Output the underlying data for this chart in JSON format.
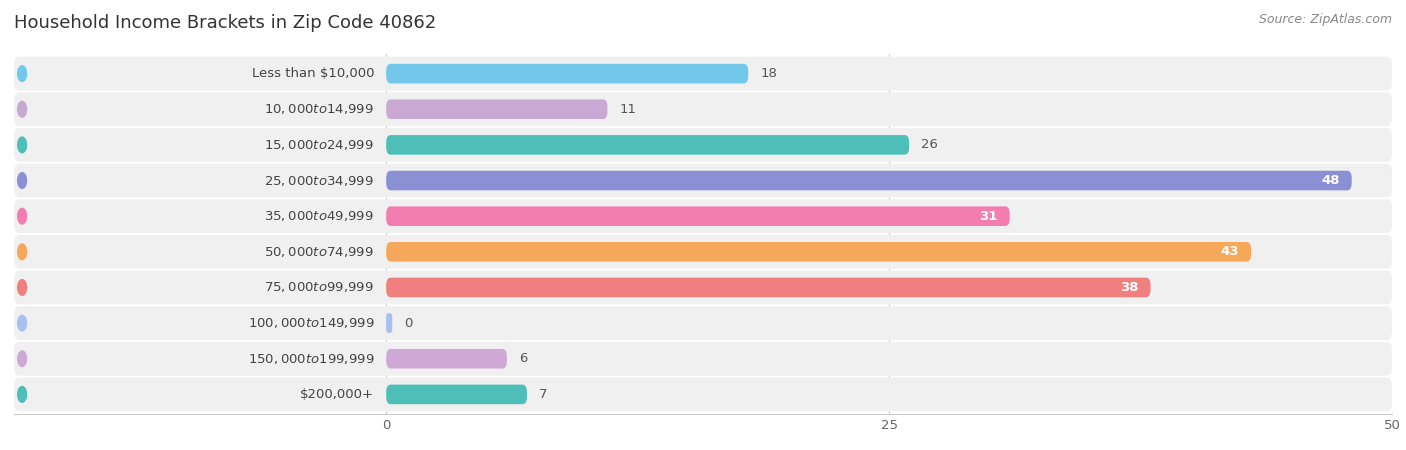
{
  "title": "Household Income Brackets in Zip Code 40862",
  "source": "Source: ZipAtlas.com",
  "categories": [
    "Less than $10,000",
    "$10,000 to $14,999",
    "$15,000 to $24,999",
    "$25,000 to $34,999",
    "$35,000 to $49,999",
    "$50,000 to $74,999",
    "$75,000 to $99,999",
    "$100,000 to $149,999",
    "$150,000 to $199,999",
    "$200,000+"
  ],
  "values": [
    18,
    11,
    26,
    48,
    31,
    43,
    38,
    0,
    6,
    7
  ],
  "colors": [
    "#72c8ea",
    "#c9a8d4",
    "#4dbfb8",
    "#8b8fd4",
    "#f47db0",
    "#f5a85a",
    "#f08080",
    "#a8c0f0",
    "#d0a8d8",
    "#4dbfb8"
  ],
  "xlim": [
    0,
    50
  ],
  "xticks": [
    0,
    25,
    50
  ],
  "background_color": "#ffffff",
  "row_bg_color": "#f0f0f0",
  "bar_height": 0.55,
  "title_fontsize": 13,
  "label_fontsize": 9.5,
  "value_fontsize": 9.5,
  "label_color": "#444444",
  "value_color_inside": "#ffffff",
  "value_color_outside": "#555555",
  "inside_threshold": 28
}
